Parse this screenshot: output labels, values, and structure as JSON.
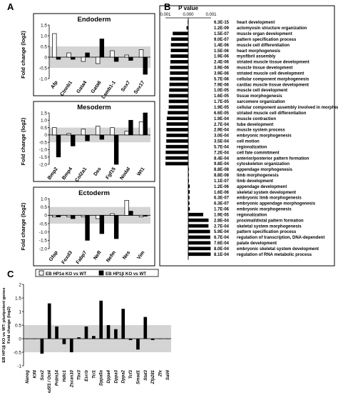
{
  "panel_letters": {
    "a": "A",
    "b": "B",
    "c": "C"
  },
  "colors": {
    "ko_alpha": "#ffffff",
    "ko_beta": "#000000",
    "band": "#d4d4d4",
    "frame": "#000000"
  },
  "chart_data": [
    {
      "id": "endoderm",
      "type": "bar",
      "title": "Endoderm",
      "ylabel": "Fold change (log2)",
      "ylim": [
        -1.0,
        1.5
      ],
      "yticks": [
        "1.5",
        "1.0",
        "0.5",
        "0",
        "-0.5",
        "-1.0"
      ],
      "band": [
        -0.5,
        0.5
      ],
      "categories": [
        "Afp",
        "Ctnnb1",
        "Gata4",
        "Gata6",
        "Lamb1-1",
        "Sox7",
        "Sox17"
      ],
      "series": [
        {
          "name": "EB HP1α KO vs WT",
          "values": [
            1.1,
            0.2,
            -0.2,
            -0.3,
            0.3,
            0.1,
            0.35
          ]
        },
        {
          "name": "EB HP1β KO vs WT",
          "values": [
            -0.1,
            -0.1,
            0.2,
            0.85,
            -0.2,
            -0.15,
            -0.8
          ]
        }
      ]
    },
    {
      "id": "mesoderm",
      "type": "bar",
      "title": "Mesoderm",
      "ylabel": "Fold change (log2)",
      "ylim": [
        -2.0,
        1.5
      ],
      "yticks": [
        "1.5",
        "1.0",
        "0.5",
        "0",
        "-0.5",
        "-1.0",
        "-1.5",
        "-2.0"
      ],
      "band": [
        -0.5,
        0.5
      ],
      "categories": [
        "Bmp2",
        "Bmp4",
        "Col2a1",
        "Des",
        "Fgf15",
        "Nodal",
        "Wt1"
      ],
      "series": [
        {
          "name": "EB HP1α KO vs WT",
          "values": [
            0.5,
            0.1,
            0.4,
            0.6,
            0.5,
            0.25,
            0.9
          ]
        },
        {
          "name": "EB HP1β KO vs WT",
          "values": [
            -1.5,
            -0.75,
            -0.4,
            -0.3,
            -2.0,
            1.0,
            1.5
          ]
        }
      ]
    },
    {
      "id": "ectoderm",
      "type": "bar",
      "title": "Ectoderm",
      "ylabel": "Fold change (log2)",
      "ylim": [
        -2.0,
        1.0
      ],
      "yticks": [
        "1.0",
        "0.5",
        "0",
        "-0.5",
        "-1.0",
        "-1.5",
        "-2.0"
      ],
      "band": [
        -0.5,
        0.5
      ],
      "categories": [
        "Gfap",
        "Foxd3",
        "Fabp7",
        "Nefl",
        "Nefm",
        "Nes",
        "Vim"
      ],
      "series": [
        {
          "name": "EB HP1α KO vs WT",
          "values": [
            -0.1,
            -0.1,
            -0.1,
            -0.2,
            0.1,
            0.9,
            -0.1
          ]
        },
        {
          "name": "EB HP1β KO vs WT",
          "values": [
            -0.1,
            -0.2,
            -1.5,
            -1.1,
            -1.4,
            0.25,
            -0.05
          ]
        }
      ]
    },
    {
      "id": "go-pvalue",
      "type": "bar",
      "orientation": "horizontal",
      "xlabel": "P value",
      "x_scale": "log",
      "xticks": [
        "0.001",
        "0.000",
        "0.001"
      ],
      "categories": [
        "heart development",
        "actomyosin structure organization",
        "muscle organ development",
        "pattern specification process",
        "muscle cell differentiation",
        "heart morphogenesis",
        "myofibril assembly",
        "striated muscle tissue development",
        "muscle tissue development",
        "striated muscle cell development",
        "cellular component morphogenesis",
        "cardiac muscle tissue development",
        "muscle cell development",
        "tissue morphogenesis",
        "sarcomere organization",
        "cellular component assembly involved in morphogenesis",
        "striated muscle cell differentiation",
        "muscle contraction",
        "tube development",
        "muscle system process",
        "embryonic morphogenesis",
        "cell motion",
        "regionalization",
        "cell fate commitment",
        "anterior/posterior pattern formation",
        "cytoskeleton organization",
        "appendage morphogenesis",
        "limb morphogenesis",
        "limb development",
        "appendage development",
        "skeletal system development",
        "embryonic limb morphogenesis",
        "embryonic appendage morphogenesis",
        "embryonic morphogenesis",
        "regionalization",
        "proximal/distal pattern formation",
        "skeletal system morphogenesis",
        "pattern specification process",
        "regulation of transcription, DNA-dependent",
        "palate development",
        "embryonic skeletal system development",
        "regulation of RNA metabolic process"
      ],
      "pvalue_labels": [
        "6.3E-15",
        "1.2E-09",
        "1.5E-07",
        "9.0E-07",
        "1.4E-06",
        "1.5E-06",
        "1.9E-06",
        "2.4E-06",
        "3.9E-06",
        "3.9E-06",
        "5.7E-06",
        "7.9E-06",
        "1.0E-05",
        "1.6E-05",
        "1.7E-05",
        "1.9E-05",
        "6.6E-05",
        "1.9E-04",
        "2.7E-04",
        "2.9E-04",
        "3.0E-04",
        "3.5E-04",
        "5.7E-04",
        "7.2E-04",
        "8.4E-04",
        "9.8E-04",
        "8.8E-08",
        "8.8E-08",
        "1.1E-07",
        "1.2E-06",
        "1.6E-06",
        "6.3E-07",
        "6.3E-07",
        "1.7E-06",
        "1.9E-05",
        "2.8E-04",
        "2.7E-04",
        "5.9E-04",
        "6.7E-04",
        "7.6E-04",
        "8.0E-04",
        "8.1E-04"
      ],
      "values": [
        6.3e-15,
        1.2e-09,
        1.5e-07,
        9e-07,
        1.4e-06,
        1.5e-06,
        1.9e-06,
        2.4e-06,
        3.9e-06,
        3.9e-06,
        5.7e-06,
        7.9e-06,
        1e-05,
        1.6e-05,
        1.7e-05,
        1.9e-05,
        6.6e-05,
        0.00019,
        0.00027,
        0.00029,
        0.0003,
        0.00035,
        0.00057,
        0.00072,
        0.00084,
        0.00098,
        8.8e-08,
        8.8e-08,
        1.1e-07,
        1.2e-06,
        1.6e-06,
        6.3e-07,
        6.3e-07,
        1.7e-06,
        1.9e-05,
        0.00028,
        0.00027,
        0.00059,
        0.00067,
        0.00076,
        0.0008,
        0.00081
      ],
      "direction": [
        "left",
        "left",
        "left",
        "left",
        "left",
        "left",
        "left",
        "left",
        "left",
        "left",
        "left",
        "left",
        "left",
        "left",
        "left",
        "left",
        "left",
        "left",
        "left",
        "left",
        "left",
        "left",
        "left",
        "left",
        "left",
        "left",
        "right",
        "right",
        "right",
        "right",
        "right",
        "right",
        "right",
        "right",
        "right",
        "right",
        "right",
        "right",
        "right",
        "right",
        "right",
        "right"
      ]
    },
    {
      "id": "pluripotent",
      "type": "bar",
      "ylabel": "EB HP1β KO vs WT: pluripotent genes\nFold change (log2)",
      "ylim": [
        -1.0,
        2.0
      ],
      "yticks": [
        "2",
        "1.5",
        "1",
        "0.5",
        "0",
        "-0.5",
        "-1"
      ],
      "band": [
        -0.5,
        0.5
      ],
      "categories": [
        "Nanog",
        "Klf4",
        "Sox2",
        "Pou5f1 / Oct4",
        "Prdm14",
        "Hdlc1",
        "Zscan10",
        "Tbx3",
        "Esrrb",
        "Tcl1",
        "Dppa5a",
        "Dppa4",
        "Dppa3",
        "Dppa2",
        "Tcf3",
        "Smad1",
        "Stat3",
        "Zfp281",
        "Zfx",
        "Sall4"
      ],
      "values": [
        0.0,
        0.0,
        -0.55,
        1.3,
        0.45,
        -0.2,
        -0.5,
        0.05,
        0.45,
        0.1,
        1.4,
        0.5,
        0.35,
        1.1,
        -0.05,
        -0.4,
        0.8,
        -0.05,
        0.0,
        0.0
      ]
    }
  ],
  "legend": {
    "items": [
      {
        "label": "EB HP1α KO vs WT",
        "swatch": "#ffffff"
      },
      {
        "label": "EB HP1β KO vs WT",
        "swatch": "#000000"
      }
    ]
  }
}
